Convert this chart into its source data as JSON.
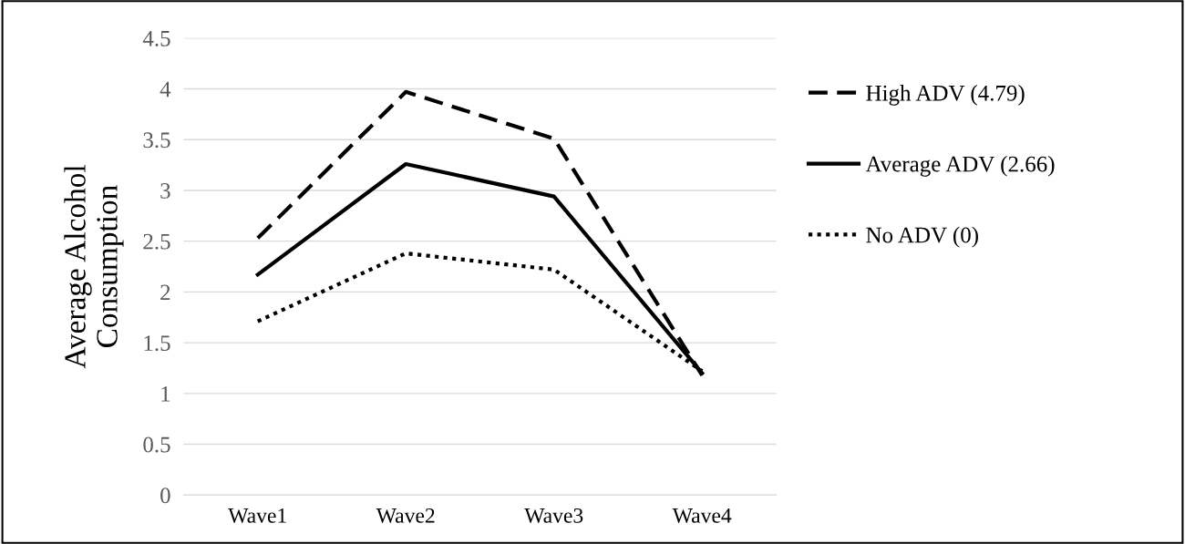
{
  "chart_data": {
    "type": "line",
    "ylabel": "Average Alcohol\nConsumption",
    "categories": [
      "Wave1",
      "Wave2",
      "Wave3",
      "Wave4"
    ],
    "series": [
      {
        "name": "High ADV (4.79)",
        "color": "#000000",
        "line_style": "dashed",
        "values": [
          2.53,
          3.97,
          3.51,
          1.18
        ]
      },
      {
        "name": "Average ADV (2.66)",
        "color": "#000000",
        "line_style": "solid",
        "values": [
          2.17,
          3.26,
          2.94,
          1.2
        ]
      },
      {
        "name": "No ADV (0)",
        "color": "#000000",
        "line_style": "dotted",
        "values": [
          1.71,
          2.38,
          2.22,
          1.22
        ]
      }
    ],
    "ylim": [
      0,
      4.5
    ],
    "yticks": [
      0,
      0.5,
      1,
      1.5,
      2,
      2.5,
      3,
      3.5,
      4,
      4.5
    ],
    "grid": "y",
    "legend": "right",
    "marker": "none"
  }
}
